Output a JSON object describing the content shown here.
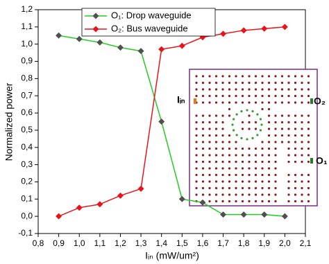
{
  "chart_data": {
    "type": "line",
    "x_label": "Iᵢₙ (mW/um²)",
    "y_label": "Normalized power",
    "x": [
      0.9,
      1.0,
      1.1,
      1.2,
      1.3,
      1.4,
      1.5,
      1.6,
      1.7,
      1.8,
      1.9,
      2.0
    ],
    "series": [
      {
        "name": "O₁: Drop waveguide",
        "color": "#22cc22",
        "marker_color": "#505050",
        "values": [
          1.05,
          1.03,
          1.01,
          0.98,
          0.96,
          0.55,
          0.1,
          0.08,
          0.01,
          0.01,
          0.01,
          0.0
        ]
      },
      {
        "name": "O₂: Bus waveguide",
        "color": "#e8141c",
        "marker_color": "#e8141c",
        "values": [
          0.0,
          0.05,
          0.07,
          0.12,
          0.16,
          0.97,
          0.99,
          1.04,
          1.06,
          1.08,
          1.09,
          1.1
        ]
      }
    ],
    "xlim": [
      0.8,
      2.1
    ],
    "xticks": [
      {
        "value": 0.8,
        "label": "0,8"
      },
      {
        "value": 0.9,
        "label": "0,9"
      },
      {
        "value": 1.0,
        "label": "1,0"
      },
      {
        "value": 1.1,
        "label": "1,1"
      },
      {
        "value": 1.2,
        "label": "1,2"
      },
      {
        "value": 1.3,
        "label": "1,3"
      },
      {
        "value": 1.4,
        "label": "1,4"
      },
      {
        "value": 1.5,
        "label": "1,5"
      },
      {
        "value": 1.6,
        "label": "1,6"
      },
      {
        "value": 1.7,
        "label": "1,7"
      },
      {
        "value": 1.8,
        "label": "1,8"
      },
      {
        "value": 1.9,
        "label": "1,9"
      },
      {
        "value": 2.0,
        "label": "2,0"
      },
      {
        "value": 2.1,
        "label": "2,1"
      }
    ],
    "ylim": [
      -0.1,
      1.2
    ],
    "yticks": [
      {
        "value": -0.1,
        "label": "-0,1"
      },
      {
        "value": 0.0,
        "label": "0,0"
      },
      {
        "value": 0.1,
        "label": "0,1"
      },
      {
        "value": 0.2,
        "label": "0,2"
      },
      {
        "value": 0.3,
        "label": "0,3"
      },
      {
        "value": 0.4,
        "label": "0,4"
      },
      {
        "value": 0.5,
        "label": "0,5"
      },
      {
        "value": 0.6,
        "label": "0,6"
      },
      {
        "value": 0.7,
        "label": "0,7"
      },
      {
        "value": 0.8,
        "label": "0,8"
      },
      {
        "value": 0.9,
        "label": "0,9"
      },
      {
        "value": 1.0,
        "label": "1,0"
      },
      {
        "value": 1.1,
        "label": "1,1"
      },
      {
        "value": 1.2,
        "label": "1,2"
      }
    ],
    "legend": "upper left",
    "inset_labels": {
      "input": "Iᵢₙ",
      "output_2": "O₂",
      "output_1": "O₁"
    }
  }
}
